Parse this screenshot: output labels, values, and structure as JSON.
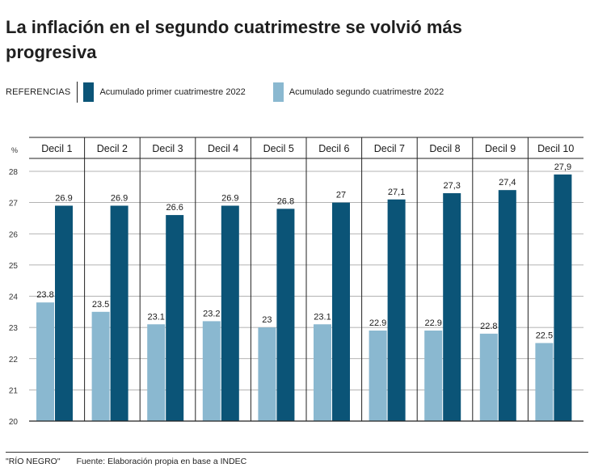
{
  "title": "La inflación en el segundo cuatrimestre se volvió más progresiva",
  "legend": {
    "label": "REFERENCIAS",
    "items": [
      {
        "label": "Acumulado primer cuatrimestre 2022",
        "color": "#0b5477"
      },
      {
        "label": "Acumulado segundo cuatrimestre 2022",
        "color": "#8ab8d0"
      }
    ]
  },
  "footer": {
    "credit": "\"RÍO NEGRO\"",
    "source": "Fuente: Elaboración propia en base a INDEC"
  },
  "chart_data": {
    "type": "bar",
    "ylabel": "%",
    "ylim": [
      20,
      28
    ],
    "yticks": [
      "20",
      "21",
      "22",
      "23",
      "24",
      "25",
      "26",
      "27",
      "28"
    ],
    "grid": true,
    "categories": [
      "Decil 1",
      "Decil 2",
      "Decil 3",
      "Decil 4",
      "Decil 5",
      "Decil 6",
      "Decil 7",
      "Decil 8",
      "Decil 9",
      "Decil 10"
    ],
    "series": [
      {
        "name": "Acumulado segundo cuatrimestre 2022",
        "color": "#8ab8d0",
        "values": [
          23.8,
          23.5,
          23.1,
          23.2,
          23,
          23.1,
          22.9,
          22.9,
          22.8,
          22.5
        ],
        "labels": [
          "23.8",
          "23.5",
          "23.1",
          "23.2",
          "23",
          "23.1",
          "22.9",
          "22.9",
          "22.8",
          "22.5"
        ]
      },
      {
        "name": "Acumulado primer cuatrimestre 2022",
        "color": "#0b5477",
        "values": [
          26.9,
          26.9,
          26.6,
          26.9,
          26.8,
          27,
          27.1,
          27.3,
          27.4,
          27.9
        ],
        "labels": [
          "26.9",
          "26.9",
          "26.6",
          "26.9",
          "26.8",
          "27",
          "27,1",
          "27,3",
          "27,4",
          "27,9"
        ]
      }
    ]
  }
}
